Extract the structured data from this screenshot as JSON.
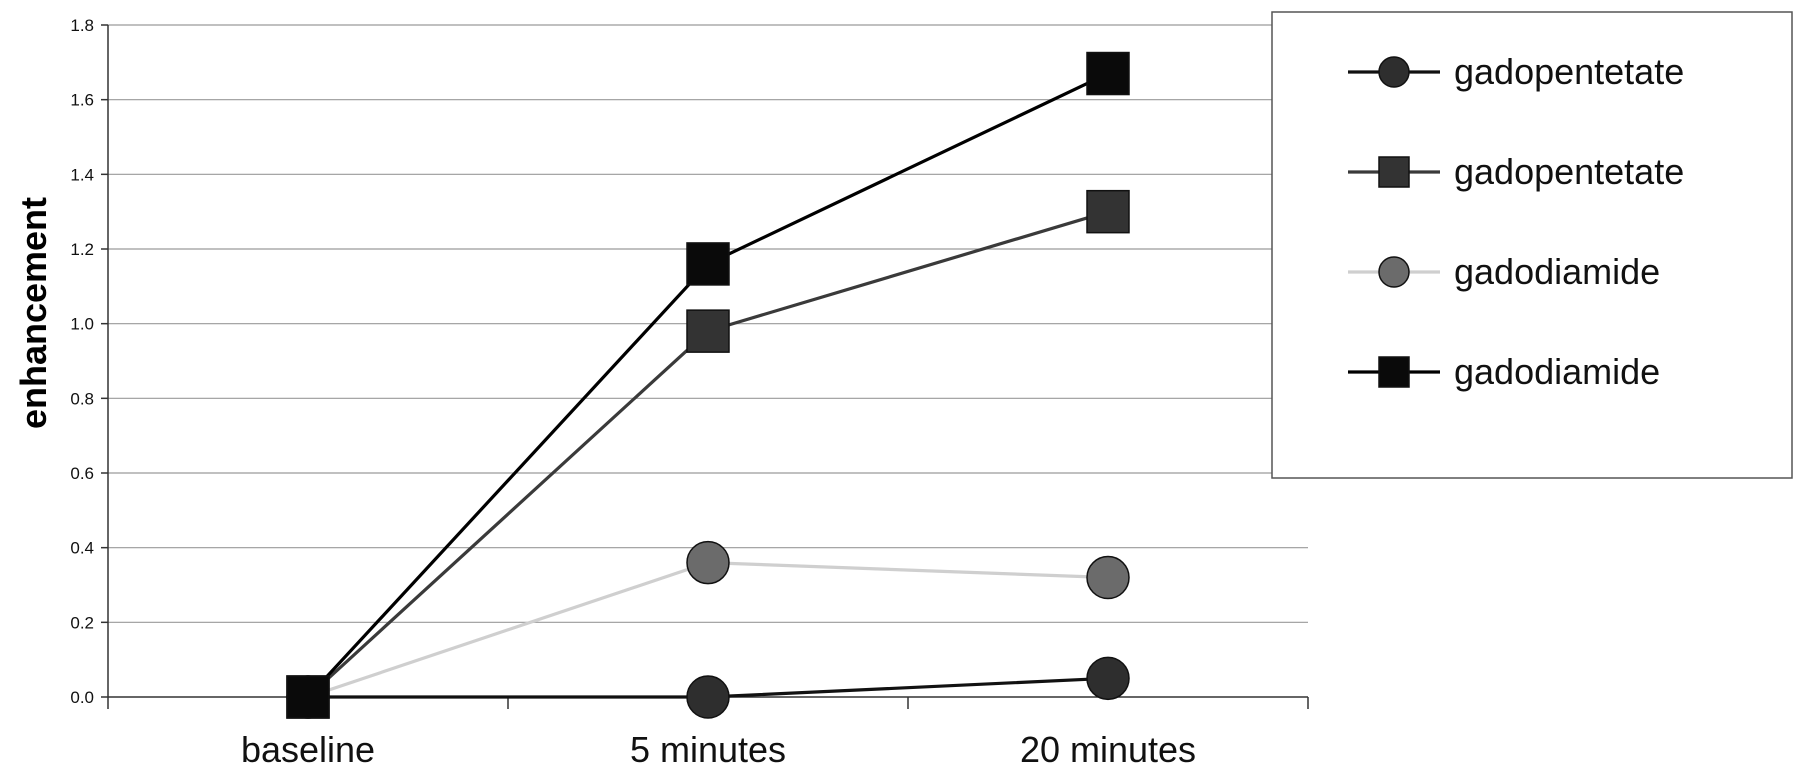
{
  "chart_data": {
    "type": "line",
    "categories": [
      "baseline",
      "5 minutes",
      "20 minutes"
    ],
    "ylabel": "enhancement",
    "xlabel": "",
    "ylim": [
      0,
      1.8
    ],
    "yticks": [
      "0.0",
      "0.2",
      "0.4",
      "0.6",
      "0.8",
      "1.0",
      "1.2",
      "1.4",
      "1.6",
      "1.8"
    ],
    "grid": true,
    "legend_position": "top-right",
    "series": [
      {
        "name": "gadopentetate",
        "marker": "circle",
        "line_color": "#111111",
        "marker_color": "#2e2e2e",
        "values": [
          0.0,
          0.0,
          0.05
        ]
      },
      {
        "name": "gadopentetate",
        "marker": "square",
        "line_color": "#3a3a3a",
        "marker_color": "#333333",
        "values": [
          0.0,
          0.98,
          1.3
        ]
      },
      {
        "name": "gadodiamide",
        "marker": "circle",
        "line_color": "#cfcfcf",
        "marker_color": "#6b6b6b",
        "values": [
          0.0,
          0.36,
          0.32
        ]
      },
      {
        "name": "gadodiamide",
        "marker": "square",
        "line_color": "#000000",
        "marker_color": "#0a0a0a",
        "values": [
          0.0,
          1.16,
          1.67
        ]
      }
    ]
  }
}
